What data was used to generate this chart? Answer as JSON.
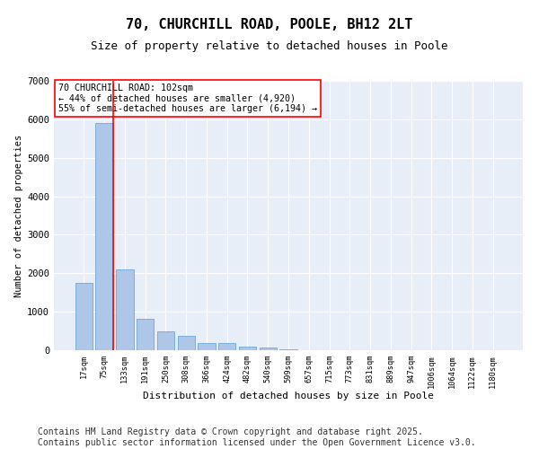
{
  "title": "70, CHURCHILL ROAD, POOLE, BH12 2LT",
  "subtitle": "Size of property relative to detached houses in Poole",
  "xlabel": "Distribution of detached houses by size in Poole",
  "ylabel": "Number of detached properties",
  "categories": [
    "17sqm",
    "75sqm",
    "133sqm",
    "191sqm",
    "250sqm",
    "308sqm",
    "366sqm",
    "424sqm",
    "482sqm",
    "540sqm",
    "599sqm",
    "657sqm",
    "715sqm",
    "773sqm",
    "831sqm",
    "889sqm",
    "947sqm",
    "1006sqm",
    "1064sqm",
    "1122sqm",
    "1180sqm"
  ],
  "values": [
    1750,
    5900,
    2100,
    820,
    500,
    380,
    195,
    185,
    100,
    60,
    30,
    10,
    5,
    3,
    2,
    1,
    0,
    0,
    0,
    0,
    0
  ],
  "bar_color": "#aec6e8",
  "bar_edge_color": "#5a9fd4",
  "vline_color": "red",
  "annotation_text": "70 CHURCHILL ROAD: 102sqm\n← 44% of detached houses are smaller (4,920)\n55% of semi-detached houses are larger (6,194) →",
  "annotation_box_color": "white",
  "annotation_box_edge": "red",
  "ylim": [
    0,
    7000
  ],
  "yticks": [
    0,
    1000,
    2000,
    3000,
    4000,
    5000,
    6000,
    7000
  ],
  "footer": "Contains HM Land Registry data © Crown copyright and database right 2025.\nContains public sector information licensed under the Open Government Licence v3.0.",
  "plot_bg_color": "#e8eef8",
  "title_fontsize": 11,
  "subtitle_fontsize": 9,
  "footer_fontsize": 7
}
